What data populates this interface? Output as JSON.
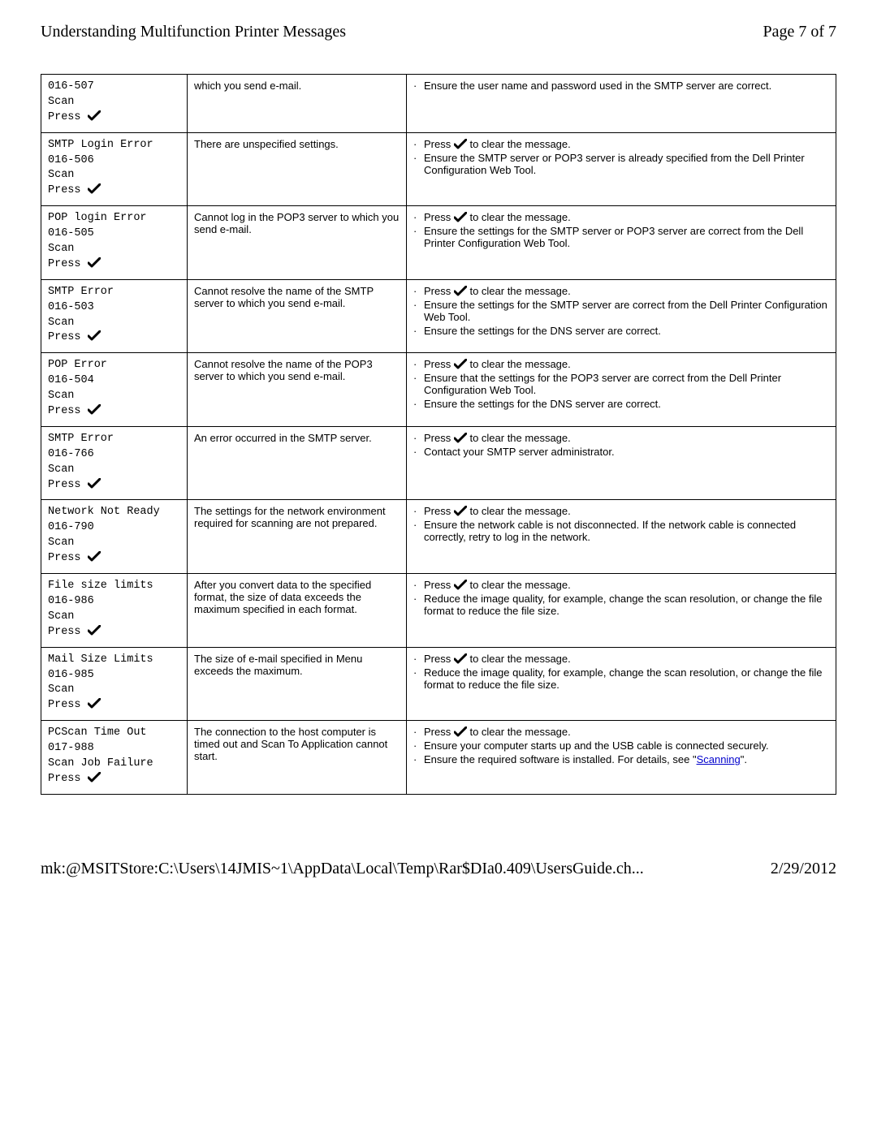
{
  "header": {
    "title": "Understanding Multifunction Printer Messages",
    "page_label": "Page 7 of 7"
  },
  "check_glyph": "✔",
  "rows": [
    {
      "code_lines": [
        "016-507",
        "Scan"
      ],
      "press": "Press",
      "description": "which you send e-mail.",
      "actions": [
        {
          "type": "text",
          "text": "Ensure the user name and password used in the SMTP server are correct."
        }
      ],
      "show_press_action": false
    },
    {
      "code_lines": [
        "SMTP Login Error",
        "016-506",
        "Scan"
      ],
      "press": "Press",
      "description": "There are unspecified settings.",
      "actions": [
        {
          "type": "press",
          "before": "Press ",
          "after": " to clear the message."
        },
        {
          "type": "text",
          "text": "Ensure the SMTP server or POP3 server is already specified from the Dell Printer Configuration Web Tool."
        }
      ]
    },
    {
      "code_lines": [
        "POP login Error",
        "016-505",
        "Scan"
      ],
      "press": "Press",
      "description": "Cannot log in the POP3 server to which you send e-mail.",
      "actions": [
        {
          "type": "press",
          "before": "Press ",
          "after": " to clear the message."
        },
        {
          "type": "text",
          "text": "Ensure the settings for the SMTP server or POP3 server are correct from the Dell Printer Configuration Web Tool."
        }
      ]
    },
    {
      "code_lines": [
        "SMTP Error",
        "016-503",
        "Scan"
      ],
      "press": "Press",
      "description": "Cannot resolve the name of the SMTP server to which you send e-mail.",
      "actions": [
        {
          "type": "press",
          "before": "Press ",
          "after": " to clear the message."
        },
        {
          "type": "text",
          "text": "Ensure the settings for the SMTP server are correct from the Dell Printer Configuration Web Tool."
        },
        {
          "type": "text",
          "text": "Ensure the settings for the DNS server are correct."
        }
      ]
    },
    {
      "code_lines": [
        "POP Error",
        "016-504",
        "Scan"
      ],
      "press": "Press",
      "description": "Cannot resolve the name of the POP3 server to which you send e-mail.",
      "actions": [
        {
          "type": "press",
          "before": "Press ",
          "after": " to clear the message."
        },
        {
          "type": "text",
          "text": "Ensure that the settings for the POP3 server are correct from the Dell Printer Configuration Web Tool."
        },
        {
          "type": "text",
          "text": "Ensure the settings for the DNS server are correct."
        }
      ]
    },
    {
      "code_lines": [
        "SMTP Error",
        "016-766",
        "Scan"
      ],
      "press": "Press",
      "description": "An error occurred in the SMTP server.",
      "actions": [
        {
          "type": "press",
          "before": "Press ",
          "after": " to clear the message."
        },
        {
          "type": "text",
          "text": "Contact your SMTP server administrator."
        }
      ]
    },
    {
      "code_lines": [
        "Network Not Ready",
        "016-790",
        "Scan"
      ],
      "press": "Press",
      "description": "The settings for the network environment required for scanning are not prepared.",
      "actions": [
        {
          "type": "press",
          "before": "Press ",
          "after": " to clear the message."
        },
        {
          "type": "text",
          "text": "Ensure the network cable is not disconnected. If the network cable is connected correctly, retry to log in the network."
        }
      ]
    },
    {
      "code_lines": [
        "File size limits",
        "016-986",
        "Scan"
      ],
      "press": "Press",
      "description": "After you convert data to the specified format, the size of data exceeds the maximum specified in each format.",
      "actions": [
        {
          "type": "press",
          "before": "Press ",
          "after": " to clear the message."
        },
        {
          "type": "text",
          "text": "Reduce the image quality, for example, change the scan resolution, or change the file format to reduce the file size."
        }
      ]
    },
    {
      "code_lines": [
        "Mail Size Limits",
        "016-985",
        "Scan"
      ],
      "press": "Press",
      "description": "The size of e-mail specified in Menu exceeds the maximum.",
      "actions": [
        {
          "type": "press",
          "before": "Press ",
          "after": " to clear the message."
        },
        {
          "type": "text",
          "text": "Reduce the image quality, for example, change the scan resolution, or change the file format to reduce the file size."
        }
      ]
    },
    {
      "code_lines": [
        "PCScan Time Out",
        "017-988",
        "Scan Job Failure"
      ],
      "press": "Press",
      "description": "The connection to the host computer is timed out and Scan To Application cannot start.",
      "actions": [
        {
          "type": "press",
          "before": "Press ",
          "after": " to clear the message."
        },
        {
          "type": "text",
          "text": "Ensure your computer starts up and the USB cable is connected securely."
        },
        {
          "type": "link",
          "before": "Ensure the required software is installed. For details, see \"",
          "link": "Scanning",
          "after": "\"."
        }
      ]
    }
  ],
  "footer": {
    "path": "mk:@MSITStore:C:\\Users\\14JMIS~1\\AppData\\Local\\Temp\\Rar$DIa0.409\\UsersGuide.ch...",
    "date": "2/29/2012"
  }
}
